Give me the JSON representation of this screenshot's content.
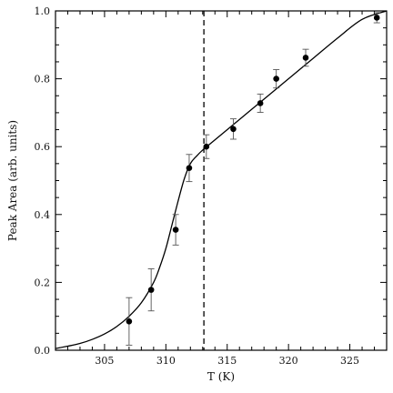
{
  "chart_data": {
    "type": "scatter",
    "title": "",
    "xlabel": "T (K)",
    "ylabel": "Peak Area (arb. units)",
    "xlim": [
      301,
      328
    ],
    "ylim": [
      0,
      1.0
    ],
    "xticks": [
      305,
      310,
      315,
      320,
      325
    ],
    "yticks": [
      0.0,
      0.2,
      0.4,
      0.6,
      0.8,
      1.0
    ],
    "xtick_labels": [
      "305",
      "310",
      "315",
      "320",
      "325"
    ],
    "ytick_labels": [
      "0.0",
      "0.2",
      "0.4",
      "0.6",
      "0.8",
      "1.0"
    ],
    "grid": false,
    "series": [
      {
        "kind": "points_with_error_bars",
        "x": [
          307.0,
          308.8,
          310.8,
          311.9,
          313.3,
          315.5,
          317.7,
          319.0,
          321.4,
          327.2
        ],
        "y": [
          0.085,
          0.178,
          0.355,
          0.537,
          0.6,
          0.652,
          0.728,
          0.8,
          0.862,
          0.98
        ],
        "yerr": [
          0.07,
          0.062,
          0.045,
          0.04,
          0.035,
          0.03,
          0.027,
          0.027,
          0.025,
          0.015
        ]
      },
      {
        "kind": "fit_curve",
        "x": [
          301.0,
          302.0,
          303.0,
          304.0,
          305.0,
          306.0,
          307.0,
          308.0,
          309.0,
          309.5,
          310.0,
          310.5,
          311.0,
          311.5,
          312.0,
          312.5,
          313.0,
          314.0,
          316.0,
          318.0,
          320.0,
          322.0,
          324.0,
          326.0,
          328.0
        ],
        "y": [
          0.005,
          0.012,
          0.02,
          0.032,
          0.048,
          0.07,
          0.1,
          0.14,
          0.2,
          0.245,
          0.3,
          0.37,
          0.44,
          0.505,
          0.55,
          0.572,
          0.59,
          0.62,
          0.68,
          0.74,
          0.8,
          0.86,
          0.92,
          0.975,
          1.0
        ]
      }
    ],
    "vline": {
      "x": 313.1,
      "style": "dashed"
    }
  }
}
